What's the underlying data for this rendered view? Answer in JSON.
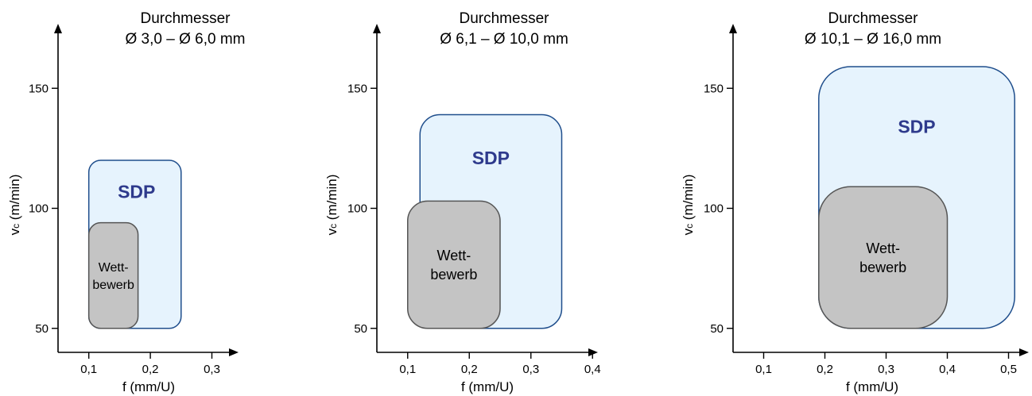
{
  "colors": {
    "sdp_fill": "#e6f3fd",
    "sdp_stroke": "#1f4e8c",
    "sdp_text": "#2e3a8c",
    "competitor_fill": "#c4c4c4",
    "competitor_stroke": "#555555"
  },
  "chart_data": [
    {
      "type": "range-box",
      "title": [
        "Durchmesser",
        "Ø 3,0 – Ø 6,0 mm"
      ],
      "xlabel": "f (mm/U)",
      "ylabel": "vc (m/min)",
      "ylabel_parts": {
        "main": "v",
        "sub": "c",
        "rest": " (m/min)"
      },
      "xticks": [
        0.1,
        0.2,
        0.3
      ],
      "xtick_labels": [
        "0,1",
        "0,2",
        "0,3"
      ],
      "yticks": [
        50,
        100,
        150
      ],
      "ytick_labels": [
        "50",
        "100",
        "150"
      ],
      "xlim": [
        0.05,
        0.34
      ],
      "ylim": [
        40,
        175
      ],
      "regions": [
        {
          "name": "SDP",
          "label_lines": [
            "SDP"
          ],
          "role": "sdp",
          "x": [
            0.1,
            0.25
          ],
          "y": [
            50,
            120
          ]
        },
        {
          "name": "Wettbewerb",
          "label_lines": [
            "Wett-",
            "bewerb"
          ],
          "role": "competitor",
          "x": [
            0.1,
            0.18
          ],
          "y": [
            50,
            94
          ]
        }
      ]
    },
    {
      "type": "range-box",
      "title": [
        "Durchmesser",
        "Ø 6,1 – Ø 10,0 mm"
      ],
      "xlabel": "f (mm/U)",
      "ylabel": "vc (m/min)",
      "ylabel_parts": {
        "main": "v",
        "sub": "c",
        "rest": " (m/min)"
      },
      "xticks": [
        0.1,
        0.2,
        0.3,
        0.4
      ],
      "xtick_labels": [
        "0,1",
        "0,2",
        "0,3",
        "0,4"
      ],
      "yticks": [
        50,
        100,
        150
      ],
      "ytick_labels": [
        "50",
        "100",
        "150"
      ],
      "xlim": [
        0.05,
        0.44
      ],
      "ylim": [
        40,
        175
      ],
      "regions": [
        {
          "name": "SDP",
          "label_lines": [
            "SDP"
          ],
          "role": "sdp",
          "x": [
            0.12,
            0.35
          ],
          "y": [
            50,
            139
          ]
        },
        {
          "name": "Wettbewerb",
          "label_lines": [
            "Wett-",
            "bewerb"
          ],
          "role": "competitor",
          "x": [
            0.1,
            0.25
          ],
          "y": [
            50,
            103
          ]
        }
      ]
    },
    {
      "type": "range-box",
      "title": [
        "Durchmesser",
        "Ø 10,1 – Ø 16,0 mm"
      ],
      "xlabel": "f (mm/U)",
      "ylabel": "vc (m/min)",
      "ylabel_parts": {
        "main": "v",
        "sub": "c",
        "rest": " (m/min)"
      },
      "xticks": [
        0.1,
        0.2,
        0.3,
        0.4,
        0.5
      ],
      "xtick_labels": [
        "0,1",
        "0,2",
        "0,3",
        "0,4",
        "0,5"
      ],
      "yticks": [
        50,
        100,
        150
      ],
      "ytick_labels": [
        "50",
        "100",
        "150"
      ],
      "xlim": [
        0.05,
        0.54
      ],
      "ylim": [
        40,
        175
      ],
      "regions": [
        {
          "name": "SDP",
          "label_lines": [
            "SDP"
          ],
          "role": "sdp",
          "x": [
            0.19,
            0.51
          ],
          "y": [
            50,
            159
          ]
        },
        {
          "name": "Wettbewerb",
          "label_lines": [
            "Wett-",
            "bewerb"
          ],
          "role": "competitor",
          "x": [
            0.19,
            0.4
          ],
          "y": [
            50,
            109
          ]
        }
      ]
    }
  ]
}
